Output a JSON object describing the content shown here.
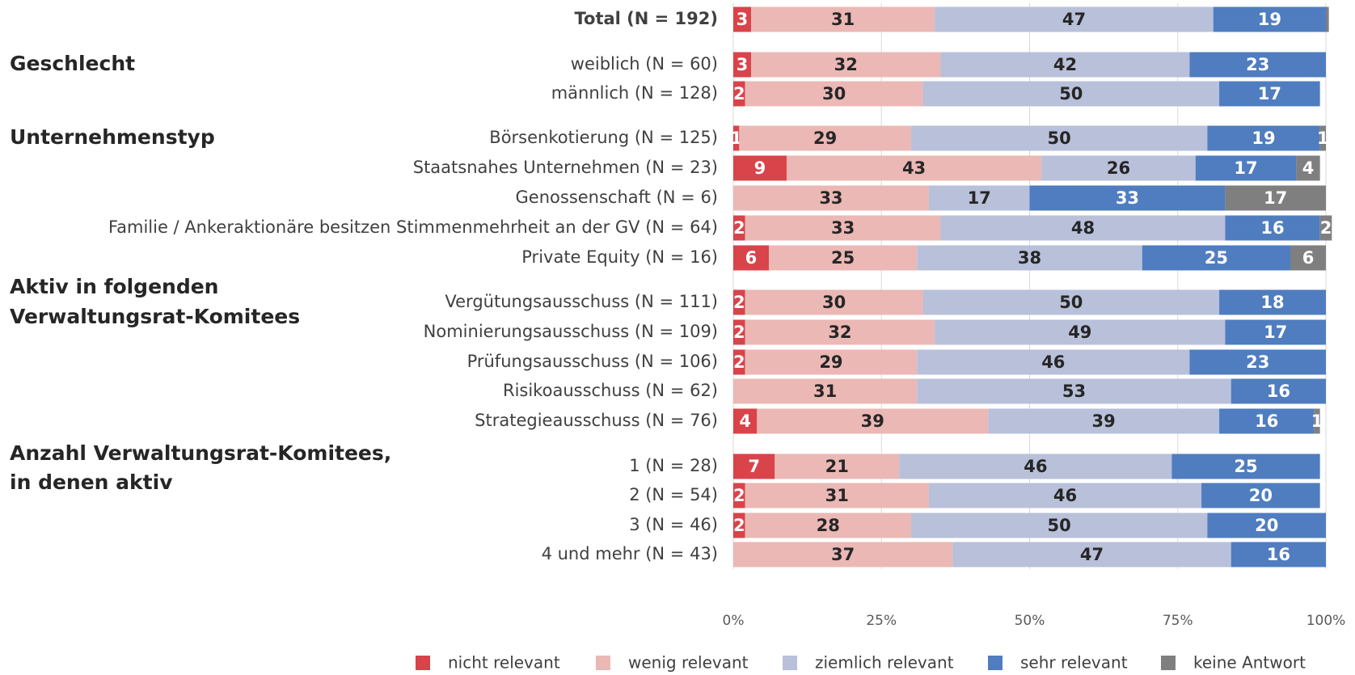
{
  "chart_data": {
    "type": "stacked_barh",
    "categories": [
      "Total (N = 192)",
      "weiblich (N = 60)",
      "männlich (N = 128)",
      "Börsenkotierung (N = 125)",
      "Staatsnahes Unternehmen (N = 23)",
      "Genossenschaft (N = 6)",
      "Familie / Ankeraktionäre besitzen Stimmenmehrheit an der GV (N = 64)",
      "Private Equity (N = 16)",
      "Vergütungsausschuss (N = 111)",
      "Nominierungsausschuss (N = 109)",
      "Prüfungsausschuss (N = 106)",
      "Risikoausschuss (N = 62)",
      "Strategieausschuss (N = 76)",
      "1 (N = 28)",
      "2 (N = 54)",
      "3 (N = 46)",
      "4 und mehr (N = 43)"
    ],
    "groups": [
      [
        "Geschlecht"
      ],
      [
        "Unternehmenstyp"
      ],
      [
        "Aktiv in folgenden",
        "Verwaltungsrat-Komitees"
      ],
      [
        "Anzahl Verwaltungsrat-Komitees,",
        "in denen aktiv"
      ]
    ],
    "series": [
      {
        "name": "nicht relevant",
        "color": "#d9434a",
        "values": [
          3,
          3,
          2,
          1,
          9,
          0,
          2,
          6,
          2,
          2,
          2,
          0,
          4,
          7,
          2,
          2,
          0
        ],
        "value_labels": [
          3,
          3,
          2,
          1,
          9,
          null,
          2,
          6,
          2,
          2,
          2,
          null,
          4,
          7,
          2,
          2,
          null
        ]
      },
      {
        "name": "wenig relevant",
        "color": "#ebb8b5",
        "values": [
          31,
          32,
          30,
          29,
          43,
          33,
          33,
          25,
          30,
          32,
          29,
          31,
          39,
          21,
          31,
          28,
          37
        ],
        "value_labels": [
          31,
          32,
          30,
          29,
          43,
          33,
          33,
          25,
          30,
          32,
          29,
          31,
          39,
          21,
          31,
          28,
          37
        ]
      },
      {
        "name": "ziemlich relevant",
        "color": "#b8c0da",
        "values": [
          47,
          42,
          50,
          50,
          26,
          17,
          48,
          38,
          50,
          49,
          46,
          53,
          39,
          46,
          46,
          50,
          47
        ],
        "value_labels": [
          47,
          42,
          50,
          50,
          26,
          17,
          48,
          38,
          50,
          49,
          46,
          53,
          39,
          46,
          46,
          50,
          47
        ]
      },
      {
        "name": "sehr relevant",
        "color": "#4f7dbf",
        "values": [
          19,
          23,
          17,
          19,
          17,
          33,
          16,
          25,
          18,
          17,
          23,
          16,
          16,
          25,
          20,
          20,
          16
        ],
        "value_labels": [
          19,
          23,
          17,
          19,
          17,
          33,
          16,
          25,
          18,
          17,
          23,
          16,
          16,
          25,
          20,
          20,
          16
        ]
      },
      {
        "name": "keine Antwort",
        "color": "#7f7f7f",
        "values": [
          0.5,
          0,
          0,
          1,
          4,
          17,
          2,
          6,
          0,
          0,
          0,
          0,
          1,
          0,
          0,
          0,
          0
        ],
        "value_labels": [
          null,
          null,
          null,
          1,
          4,
          17,
          2,
          6,
          null,
          null,
          null,
          null,
          1,
          null,
          null,
          null,
          null
        ]
      }
    ],
    "xlim": [
      0,
      100
    ],
    "xticks": [
      {
        "value": 0,
        "label": "0%"
      },
      {
        "value": 25,
        "label": "25%"
      },
      {
        "value": 50,
        "label": "50%"
      },
      {
        "value": 75,
        "label": "75%"
      },
      {
        "value": 100,
        "label": "100%"
      }
    ],
    "grid": true,
    "legend": "bottom"
  }
}
